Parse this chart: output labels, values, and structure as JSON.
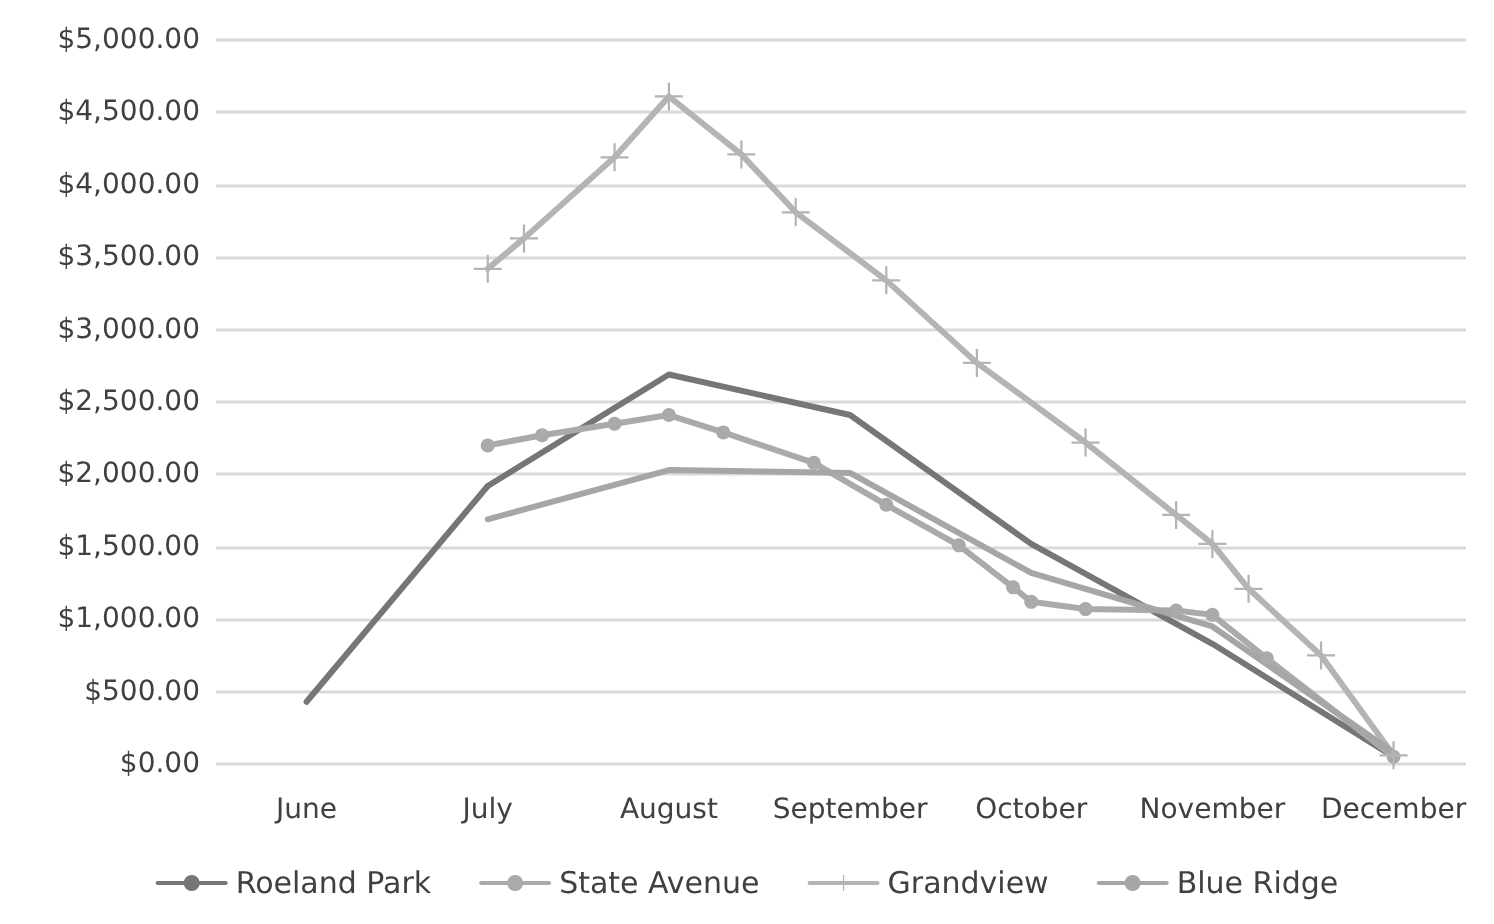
{
  "chart_data": {
    "type": "line",
    "categories": [
      null,
      null,
      null,
      null,
      null,
      "June",
      null,
      null,
      null,
      null,
      null,
      null,
      null,
      null,
      null,
      "July",
      null,
      null,
      null,
      null,
      null,
      null,
      null,
      null,
      null,
      "August",
      null,
      null,
      null,
      null,
      null,
      null,
      null,
      null,
      null,
      "September",
      null,
      null,
      null,
      null,
      null,
      null,
      null,
      null,
      null,
      "October",
      null,
      null,
      null,
      null,
      null,
      null,
      null,
      null,
      null,
      "November",
      null,
      null,
      null,
      null,
      null,
      null,
      null,
      null,
      null,
      "December",
      null,
      null,
      null,
      null
    ],
    "ylim": [
      0,
      5000
    ],
    "yticks": [
      {
        "value": 0,
        "label": "$0.00"
      },
      {
        "value": 500,
        "label": "$500.00"
      },
      {
        "value": 1000,
        "label": "$1,000.00"
      },
      {
        "value": 1500,
        "label": "$1,500.00"
      },
      {
        "value": 2000,
        "label": "$2,000.00"
      },
      {
        "value": 2500,
        "label": "$2,500.00"
      },
      {
        "value": 3000,
        "label": "$3,000.00"
      },
      {
        "value": 3500,
        "label": "$3,500.00"
      },
      {
        "value": 4000,
        "label": "$4,000.00"
      },
      {
        "value": 4500,
        "label": "$4,500.00"
      },
      {
        "value": 5000,
        "label": "$5,000.00"
      }
    ],
    "grid": "y",
    "legend": "bottom",
    "line_style": "solid",
    "series": [
      {
        "name": "Roeland Park",
        "color": "#767676",
        "marker": "none",
        "values": [
          null,
          null,
          null,
          null,
          null,
          430,
          null,
          null,
          null,
          null,
          null,
          null,
          null,
          null,
          null,
          1920,
          null,
          null,
          null,
          null,
          null,
          null,
          null,
          null,
          null,
          2690,
          null,
          null,
          null,
          null,
          null,
          null,
          null,
          null,
          null,
          2410,
          null,
          null,
          null,
          null,
          null,
          null,
          null,
          null,
          null,
          1520,
          null,
          null,
          null,
          null,
          null,
          null,
          null,
          null,
          null,
          830,
          null,
          null,
          null,
          null,
          null,
          null,
          null,
          null,
          null,
          50,
          null,
          null,
          null,
          null
        ]
      },
      {
        "name": "State Avenue",
        "color": "#aaaaaa",
        "marker": "circle",
        "values": [
          null,
          null,
          null,
          null,
          null,
          null,
          null,
          null,
          null,
          null,
          null,
          null,
          null,
          null,
          null,
          2200,
          null,
          null,
          2270,
          null,
          null,
          null,
          2350,
          null,
          null,
          2410,
          null,
          null,
          2290,
          null,
          null,
          null,
          null,
          2080,
          null,
          null,
          null,
          1790,
          null,
          null,
          null,
          1510,
          null,
          null,
          1220,
          1120,
          null,
          null,
          1070,
          null,
          null,
          null,
          null,
          1060,
          null,
          1030,
          null,
          null,
          730,
          null,
          null,
          null,
          null,
          null,
          null,
          50,
          null,
          null,
          null,
          null
        ]
      },
      {
        "name": "Grandview",
        "color": "#b4b4b4",
        "marker": "cross",
        "values": [
          null,
          null,
          null,
          null,
          null,
          null,
          null,
          null,
          null,
          null,
          null,
          null,
          null,
          null,
          null,
          3420,
          null,
          3630,
          null,
          null,
          null,
          null,
          4190,
          null,
          null,
          4610,
          null,
          null,
          null,
          4210,
          null,
          null,
          3810,
          null,
          null,
          null,
          null,
          3340,
          null,
          null,
          null,
          null,
          2770,
          null,
          null,
          null,
          null,
          null,
          2220,
          null,
          null,
          null,
          null,
          1720,
          null,
          1520,
          null,
          1210,
          null,
          null,
          null,
          750,
          null,
          null,
          null,
          60,
          null,
          null,
          null,
          null
        ]
      },
      {
        "name": "Blue Ridge",
        "color": "#a6a6a6",
        "marker": "none",
        "values": [
          null,
          null,
          null,
          null,
          null,
          null,
          null,
          null,
          null,
          null,
          null,
          null,
          null,
          null,
          null,
          1690,
          null,
          null,
          null,
          null,
          null,
          null,
          null,
          null,
          null,
          2030,
          null,
          null,
          null,
          null,
          null,
          null,
          null,
          null,
          null,
          2010,
          null,
          null,
          null,
          null,
          null,
          null,
          null,
          null,
          null,
          1320,
          null,
          null,
          null,
          null,
          null,
          null,
          null,
          null,
          null,
          950,
          null,
          null,
          null,
          null,
          null,
          null,
          null,
          null,
          null,
          80,
          null,
          null,
          null,
          null
        ]
      }
    ]
  }
}
